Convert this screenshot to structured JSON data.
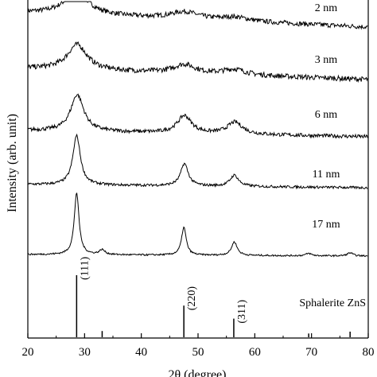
{
  "chart_data": {
    "type": "line",
    "title": "",
    "xlabel": "2θ (degree)",
    "ylabel": "Intensity (arb. unit)",
    "xlim": [
      20,
      80
    ],
    "x_ticks": [
      20,
      30,
      40,
      50,
      60,
      70,
      80
    ],
    "grid": false,
    "legend": "none",
    "line_color": "#000000",
    "series": [
      {
        "name": "2 nm",
        "peaks": [
          {
            "x": 28.6,
            "height": 28,
            "width": 2.6
          },
          {
            "x": 47.6,
            "height": 9,
            "width": 3.0
          },
          {
            "x": 56.5,
            "height": 5,
            "width": 3.0
          }
        ]
      },
      {
        "name": "3 nm",
        "peaks": [
          {
            "x": 28.7,
            "height": 32,
            "width": 2.1
          },
          {
            "x": 47.6,
            "height": 11,
            "width": 2.4
          },
          {
            "x": 56.4,
            "height": 7,
            "width": 2.4
          }
        ]
      },
      {
        "name": "6 nm",
        "peaks": [
          {
            "x": 28.7,
            "height": 46,
            "width": 1.4
          },
          {
            "x": 47.6,
            "height": 22,
            "width": 1.5
          },
          {
            "x": 56.5,
            "height": 15,
            "width": 1.6
          }
        ]
      },
      {
        "name": "11 nm",
        "peaks": [
          {
            "x": 28.6,
            "height": 62,
            "width": 0.8
          },
          {
            "x": 47.6,
            "height": 28,
            "width": 0.8
          },
          {
            "x": 56.4,
            "height": 14,
            "width": 0.9
          }
        ]
      },
      {
        "name": "17 nm",
        "peaks": [
          {
            "x": 28.6,
            "height": 78,
            "width": 0.5
          },
          {
            "x": 33.1,
            "height": 6,
            "width": 0.6
          },
          {
            "x": 47.5,
            "height": 35,
            "width": 0.5
          },
          {
            "x": 56.4,
            "height": 17,
            "width": 0.6
          },
          {
            "x": 69.5,
            "height": 3,
            "width": 0.6
          },
          {
            "x": 76.8,
            "height": 4,
            "width": 0.6
          }
        ]
      }
    ],
    "reference": {
      "name": "Sphalerite ZnS",
      "lines": [
        {
          "x": 28.6,
          "intensity": 100,
          "label": "(111)"
        },
        {
          "x": 33.1,
          "intensity": 10,
          "label": ""
        },
        {
          "x": 47.5,
          "intensity": 51,
          "label": "(220)"
        },
        {
          "x": 56.3,
          "intensity": 30,
          "label": "(311)"
        },
        {
          "x": 69.5,
          "intensity": 6,
          "label": ""
        },
        {
          "x": 76.8,
          "intensity": 9,
          "label": ""
        }
      ]
    }
  }
}
